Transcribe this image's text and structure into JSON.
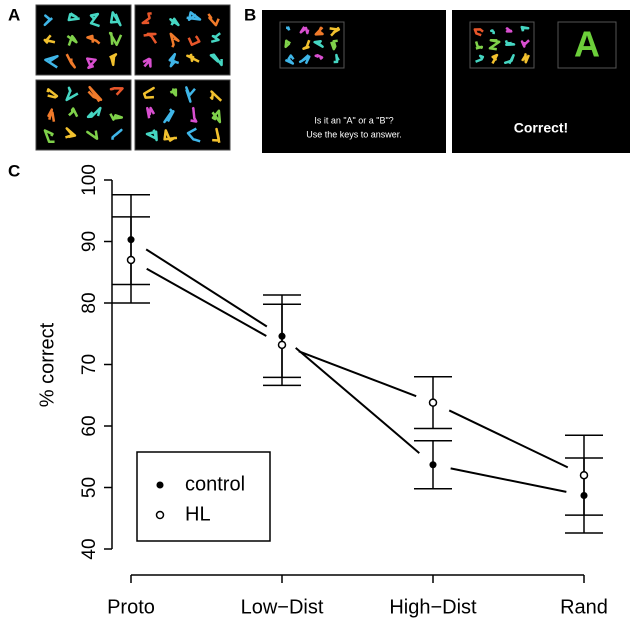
{
  "panels": {
    "a": "A",
    "b": "B",
    "c": "C"
  },
  "screen": {
    "question": "Is it an \"A\" or a \"B\"?",
    "instruction": "Use the keys to answer.",
    "feedback": "Correct!",
    "answer": "A"
  },
  "chart_data": {
    "type": "line",
    "y_label": "% correct",
    "categories": [
      "Proto",
      "Low−Dist",
      "High−Dist",
      "Rand"
    ],
    "series": [
      {
        "name": "control",
        "color": "#000000",
        "marker": "filled",
        "values": [
          90.3,
          74.6,
          53.7,
          48.7
        ],
        "errors": [
          7.3,
          6.7,
          3.9,
          6.1
        ]
      },
      {
        "name": "HL",
        "color": "#000000",
        "marker": "open",
        "values": [
          87,
          73.2,
          63.8,
          52
        ],
        "errors": [
          7,
          6.6,
          4.2,
          6.5
        ]
      }
    ],
    "ylim": [
      40,
      100
    ],
    "yticks": [
      40,
      50,
      60,
      70,
      80,
      90,
      100
    ],
    "grid": false
  }
}
